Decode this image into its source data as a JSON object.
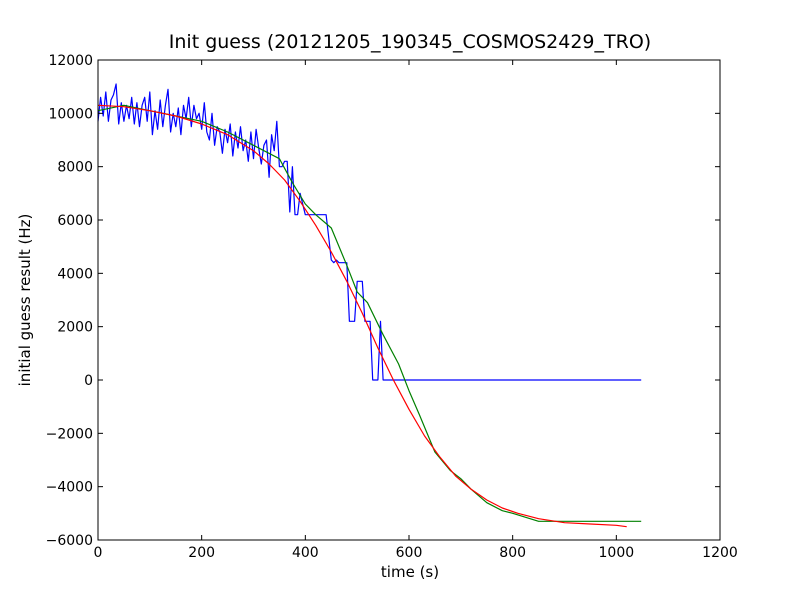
{
  "chart_data": {
    "type": "line",
    "title": "Init guess (20121205_190345_COSMOS2429_TRO)",
    "xlabel": "time (s)",
    "ylabel": "initial guess result (Hz)",
    "xlim": [
      0,
      1200
    ],
    "ylim": [
      -6000,
      12000
    ],
    "xticks": [
      0,
      200,
      400,
      600,
      800,
      1000,
      1200
    ],
    "yticks": [
      -6000,
      -4000,
      -2000,
      0,
      2000,
      4000,
      6000,
      8000,
      10000,
      12000
    ],
    "xtick_labels": [
      "0",
      "200",
      "400",
      "600",
      "800",
      "1000",
      "1200"
    ],
    "ytick_labels": [
      "−6000",
      "−4000",
      "−2000",
      "0",
      "2000",
      "4000",
      "6000",
      "8000",
      "10000",
      "12000"
    ],
    "grid": false,
    "series": [
      {
        "color": "#0000ff",
        "x": [
          0,
          5,
          10,
          15,
          20,
          25,
          30,
          35,
          40,
          45,
          50,
          55,
          60,
          65,
          70,
          75,
          80,
          85,
          90,
          95,
          100,
          105,
          110,
          115,
          120,
          125,
          130,
          135,
          140,
          145,
          150,
          155,
          160,
          165,
          170,
          175,
          180,
          185,
          190,
          195,
          200,
          205,
          210,
          215,
          220,
          225,
          230,
          235,
          240,
          245,
          250,
          255,
          260,
          265,
          270,
          275,
          280,
          285,
          290,
          295,
          300,
          305,
          310,
          315,
          320,
          325,
          330,
          335,
          340,
          345,
          350,
          355,
          360,
          365,
          370,
          375,
          380,
          385,
          390,
          400,
          410,
          420,
          430,
          440,
          450,
          455,
          460,
          465,
          470,
          475,
          480,
          485,
          490,
          495,
          500,
          505,
          510,
          515,
          520,
          525,
          530,
          535,
          540,
          545,
          550,
          555,
          560,
          565,
          570,
          575,
          580,
          585,
          590,
          595,
          600,
          605,
          610,
          615,
          620,
          625,
          630,
          635,
          640,
          645,
          650,
          655,
          660,
          665,
          670,
          675,
          680,
          685,
          690,
          695,
          700,
          705,
          710,
          715,
          720,
          725,
          730,
          735,
          740,
          745,
          750,
          755,
          760,
          765,
          770,
          775,
          780,
          785,
          790,
          795,
          800,
          805,
          810,
          815,
          820,
          825,
          830,
          835,
          840,
          845,
          850,
          860,
          870,
          880,
          890,
          900,
          910,
          920,
          930,
          940,
          945,
          950,
          955,
          960,
          970,
          980,
          990,
          995,
          1000,
          1010,
          1020,
          1025,
          1030,
          1040,
          1048
        ],
        "y": [
          9700,
          10600,
          9900,
          10800,
          9700,
          10500,
          10700,
          11100,
          9600,
          10400,
          9700,
          10300,
          9800,
          10600,
          9600,
          10400,
          9500,
          10300,
          10600,
          9700,
          10800,
          9200,
          10100,
          9400,
          10500,
          9500,
          10300,
          10900,
          9300,
          10000,
          9500,
          10200,
          9200,
          10300,
          9800,
          10600,
          9500,
          10300,
          9800,
          10000,
          9400,
          10400,
          9300,
          9000,
          10000,
          8800,
          9500,
          9300,
          8500,
          9400,
          8900,
          9600,
          8400,
          9300,
          8700,
          9500,
          8600,
          9000,
          8200,
          9300,
          8300,
          9400,
          8700,
          8100,
          8800,
          9000,
          7600,
          9200,
          8600,
          9700,
          8000,
          8000,
          8200,
          8200,
          6300,
          8000,
          6200,
          6200,
          7000,
          6200,
          6200,
          6200,
          6200,
          6200,
          4500,
          4400,
          4500,
          4400,
          4400,
          4400,
          4400,
          2200,
          2200,
          2200,
          3700,
          3700,
          3700,
          2200,
          2200,
          2200,
          0,
          0,
          0,
          2200,
          0,
          0,
          0,
          0,
          0,
          0,
          0,
          0,
          0,
          0,
          0,
          0,
          0,
          0,
          0,
          0,
          0,
          0,
          0,
          0,
          0,
          0,
          0,
          0,
          0,
          0,
          0,
          0,
          0,
          0,
          0,
          0,
          0,
          0,
          0,
          0,
          0,
          0,
          0,
          0,
          0,
          0,
          0,
          0,
          0,
          0,
          0,
          0,
          0,
          0,
          0,
          0,
          0,
          0,
          0,
          0,
          0,
          0,
          0,
          0,
          0,
          0,
          0,
          0,
          0,
          0,
          0,
          0,
          0,
          0,
          0,
          0,
          0,
          0,
          0,
          0,
          0,
          0,
          0,
          0,
          0,
          0,
          0,
          0,
          0
        ]
      },
      {
        "color": "#008000",
        "x": [
          0,
          50,
          100,
          150,
          200,
          250,
          300,
          350,
          375,
          400,
          420,
          450,
          480,
          500,
          520,
          550,
          580,
          600,
          620,
          650,
          680,
          700,
          720,
          750,
          780,
          800,
          850,
          900,
          950,
          1000,
          1048
        ],
        "y": [
          10100,
          10300,
          10100,
          9900,
          9700,
          9300,
          8800,
          8300,
          7400,
          6600,
          6200,
          5700,
          4300,
          3300,
          2900,
          1700,
          600,
          -400,
          -1300,
          -2700,
          -3400,
          -3700,
          -4100,
          -4600,
          -4900,
          -5000,
          -5300,
          -5300,
          -5300,
          -5300,
          -5300
        ]
      },
      {
        "color": "#ff0000",
        "x": [
          0,
          50,
          100,
          150,
          200,
          250,
          300,
          330,
          360,
          390,
          420,
          450,
          480,
          510,
          540,
          570,
          600,
          630,
          660,
          690,
          720,
          750,
          780,
          810,
          850,
          900,
          950,
          1000,
          1020
        ],
        "y": [
          10300,
          10250,
          10100,
          9900,
          9600,
          9200,
          8600,
          8100,
          7500,
          6700,
          5800,
          4800,
          3700,
          2500,
          1200,
          0,
          -1100,
          -2100,
          -2900,
          -3600,
          -4100,
          -4500,
          -4800,
          -5000,
          -5200,
          -5350,
          -5400,
          -5450,
          -5500
        ]
      }
    ]
  }
}
